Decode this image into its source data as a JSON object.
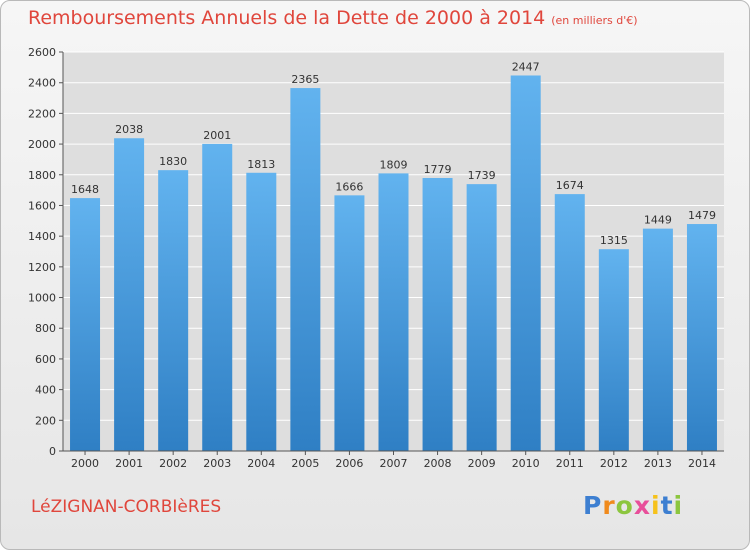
{
  "chart_data": {
    "type": "bar",
    "title": "Remboursements Annuels de la Dette de 2000 à 2014",
    "subtitle": "(en milliers d'€)",
    "categories": [
      "2000",
      "2001",
      "2002",
      "2003",
      "2004",
      "2005",
      "2006",
      "2007",
      "2008",
      "2009",
      "2010",
      "2011",
      "2012",
      "2013",
      "2014"
    ],
    "values": [
      1648,
      2038,
      1830,
      2001,
      1813,
      2365,
      1666,
      1809,
      1779,
      1739,
      2447,
      1674,
      1315,
      1449,
      1479
    ],
    "ylim": [
      0,
      2600
    ],
    "yticks": [
      0,
      200,
      400,
      600,
      800,
      1000,
      1200,
      1400,
      1600,
      1800,
      2000,
      2200,
      2400,
      2600
    ],
    "grid": true,
    "xlabel": "",
    "ylabel": "",
    "colors": {
      "bar": "#3a8fd6",
      "bar_light": "#62b3ef",
      "title": "#e0463c",
      "grid": "#ffffff",
      "plot_bg": "#dedede"
    }
  },
  "commune": "LéZIGNAN-CORBIèRES",
  "logo": {
    "letters": [
      "P",
      "r",
      "o",
      "x",
      "i",
      "t",
      "i"
    ],
    "colors": [
      "#3d7fd1",
      "#f08a1c",
      "#8cc63f",
      "#e84f9a",
      "#f6c21b",
      "#3d7fd1",
      "#8cc63f"
    ]
  }
}
